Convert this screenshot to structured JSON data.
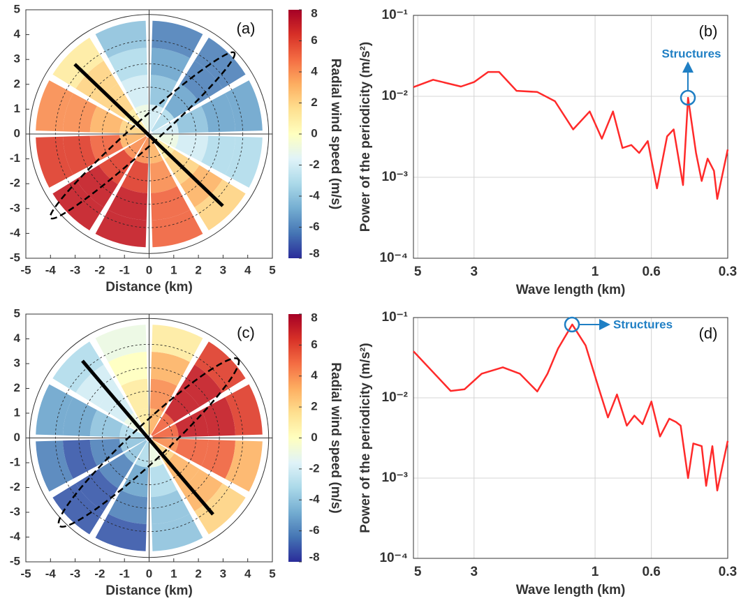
{
  "chart_data": [
    {
      "type": "ppi",
      "title": "(a)",
      "xlabel": "Distance (km)",
      "xlim": [
        -5,
        5
      ],
      "xticks": [
        -5,
        -4,
        -3,
        -2,
        -1,
        0,
        1,
        2,
        3,
        4,
        5
      ],
      "ylim": [
        -5,
        5
      ],
      "yticks": [
        -5,
        -4,
        -3,
        -2,
        -1,
        0,
        1,
        2,
        3,
        4,
        5
      ],
      "clabel": "Radial wind speed (m/s)",
      "clim": [
        -8,
        8
      ],
      "cticks": [
        -8,
        -6,
        -4,
        -2,
        0,
        2,
        4,
        6,
        8
      ],
      "values": [
        [
          -2,
          -4,
          -5,
          -6
        ],
        [
          -3,
          -5,
          -6,
          -6
        ],
        [
          -2,
          -4,
          -5,
          -5
        ],
        [
          -1,
          -2,
          -3,
          -3
        ],
        [
          1,
          2,
          3,
          2
        ],
        [
          3,
          4,
          5,
          5
        ],
        [
          4,
          6,
          7,
          7
        ],
        [
          4,
          6,
          7,
          7
        ],
        [
          3,
          5,
          6,
          6
        ],
        [
          2,
          3,
          4,
          4
        ],
        [
          1,
          2,
          2,
          1
        ],
        [
          -1,
          -2,
          -3,
          -4
        ]
      ]
    },
    {
      "type": "line",
      "title": "(b)",
      "xlabel": "Wave length (km)",
      "ylabel": "Power of the periodicity (m/s²)",
      "log_x": true,
      "log_y": true,
      "grid": true,
      "color": "#ff2a2a",
      "xlim": [
        5.2,
        0.3
      ],
      "xticks": [
        5,
        3,
        1,
        0.6,
        0.3
      ],
      "ylim": [
        0.0001,
        0.1
      ],
      "yticks": [
        {
          "value": 0.0001,
          "label": "10⁻⁴"
        },
        {
          "value": 0.001,
          "label": "10⁻³"
        },
        {
          "value": 0.01,
          "label": "10⁻²"
        },
        {
          "value": 0.1,
          "label": "10⁻¹"
        }
      ],
      "x": [
        5.2,
        4.35,
        3.38,
        3.0,
        2.64,
        2.39,
        2.04,
        1.69,
        1.44,
        1.22,
        1.05,
        0.94,
        0.85,
        0.78,
        0.72,
        0.67,
        0.62,
        0.57,
        0.52,
        0.49,
        0.45,
        0.43,
        0.4,
        0.38,
        0.36,
        0.34,
        0.33,
        0.3
      ],
      "values": [
        0.013,
        0.016,
        0.0132,
        0.015,
        0.02,
        0.02,
        0.0117,
        0.0113,
        0.0087,
        0.0039,
        0.0065,
        0.003,
        0.0065,
        0.0023,
        0.0025,
        0.002,
        0.0028,
        0.00073,
        0.0032,
        0.0039,
        0.0008,
        0.0096,
        0.002,
        0.0009,
        0.0017,
        0.0012,
        0.00054,
        0.0022
      ],
      "annotation": "Structures",
      "annotation_color": "#1f7fc4"
    },
    {
      "type": "ppi",
      "title": "(c)",
      "xlabel": "Distance (km)",
      "xlim": [
        -5,
        5
      ],
      "xticks": [
        -5,
        -4,
        -3,
        -2,
        -1,
        0,
        1,
        2,
        3,
        4,
        5
      ],
      "ylim": [
        -5,
        5
      ],
      "yticks": [
        -5,
        -4,
        -3,
        -2,
        -1,
        0,
        1,
        2,
        3,
        4,
        5
      ],
      "clabel": "Radial wind speed (m/s)",
      "clim": [
        -8,
        8
      ],
      "cticks": [
        -8,
        -6,
        -4,
        -2,
        0,
        2,
        4,
        6,
        8
      ],
      "values": [
        [
          3,
          4,
          3,
          1
        ],
        [
          5,
          7,
          7,
          6
        ],
        [
          5,
          7,
          7,
          6
        ],
        [
          4,
          5,
          5,
          3
        ],
        [
          2,
          3,
          3,
          2
        ],
        [
          -1,
          -3,
          -4,
          -4
        ],
        [
          -3,
          -5,
          -6,
          -7
        ],
        [
          -4,
          -6,
          -7,
          -7
        ],
        [
          -4,
          -6,
          -7,
          -6
        ],
        [
          -3,
          -4,
          -5,
          -5
        ],
        [
          -1,
          -2,
          -2,
          -3
        ],
        [
          1,
          1,
          0,
          -1
        ]
      ]
    },
    {
      "type": "line",
      "title": "(d)",
      "xlabel": "Wave length (km)",
      "ylabel": "Power of the periodicity (m/s²)",
      "log_x": true,
      "log_y": true,
      "grid": true,
      "color": "#ff2a2a",
      "xlim": [
        5.2,
        0.3
      ],
      "xticks": [
        5,
        3,
        1,
        0.6,
        0.3
      ],
      "ylim": [
        0.0001,
        0.1
      ],
      "yticks": [
        {
          "value": 0.0001,
          "label": "10⁻⁴"
        },
        {
          "value": 0.001,
          "label": "10⁻³"
        },
        {
          "value": 0.01,
          "label": "10⁻²"
        },
        {
          "value": 0.1,
          "label": "10⁻¹"
        }
      ],
      "x": [
        5.2,
        3.71,
        3.27,
        2.8,
        2.31,
        1.98,
        1.69,
        1.54,
        1.4,
        1.23,
        1.09,
        0.97,
        0.89,
        0.82,
        0.75,
        0.7,
        0.65,
        0.6,
        0.555,
        0.51,
        0.48,
        0.46,
        0.43,
        0.41,
        0.38,
        0.365,
        0.345,
        0.33,
        0.3
      ],
      "values": [
        0.038,
        0.0122,
        0.0128,
        0.02,
        0.024,
        0.02,
        0.012,
        0.02,
        0.041,
        0.082,
        0.045,
        0.0135,
        0.0057,
        0.011,
        0.0045,
        0.006,
        0.0047,
        0.009,
        0.0033,
        0.0055,
        0.005,
        0.0045,
        0.001,
        0.0027,
        0.0025,
        0.0008,
        0.0025,
        0.0007,
        0.0029
      ],
      "annotation": "Structures",
      "annotation_color": "#1f7fc4"
    }
  ]
}
